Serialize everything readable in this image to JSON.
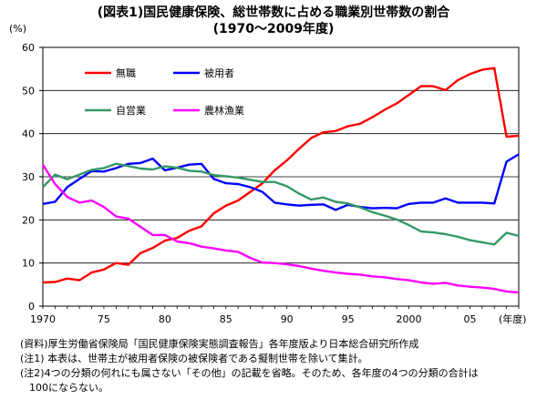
{
  "title_line1": "(図表1)国民健康保険、総世帯数に占める職業別世帯数の割合",
  "title_line2": "(1970〜2009年度)",
  "notes": {
    "source": "(資料)厚生労働省保険局「国民健康保険実態調査報告」各年度版より日本総合研究所作成",
    "note1": "(注1) 本表は、世帯主が被用者保険の被保険者である擬制世帯を除いて集計。",
    "note2": "(注2)4つの分類の何れにも属さない「その他」の記載を省略。そのため、各年度の4つの分類の合計は",
    "note2_cont": "100にならない。"
  },
  "chart_data": {
    "type": "line",
    "ylabel": "(%)",
    "xlabel": "(年度)",
    "ylim": [
      0,
      60
    ],
    "yticks": [
      "0",
      "10",
      "20",
      "30",
      "40",
      "50",
      "60"
    ],
    "xlim": [
      1970,
      2009
    ],
    "xticks": [
      {
        "year": 1970,
        "label": "1970"
      },
      {
        "year": 1975,
        "label": "75"
      },
      {
        "year": 1980,
        "label": "80"
      },
      {
        "year": 1985,
        "label": "85"
      },
      {
        "year": 1990,
        "label": "90"
      },
      {
        "year": 1995,
        "label": "95"
      },
      {
        "year": 2000,
        "label": "2000"
      },
      {
        "year": 2005,
        "label": "05"
      }
    ],
    "grid": true,
    "legend_position": "top",
    "x": [
      1970,
      1971,
      1972,
      1973,
      1974,
      1975,
      1976,
      1977,
      1978,
      1979,
      1980,
      1981,
      1982,
      1983,
      1984,
      1985,
      1986,
      1987,
      1988,
      1989,
      1990,
      1991,
      1992,
      1993,
      1994,
      1995,
      1996,
      1997,
      1998,
      1999,
      2000,
      2001,
      2002,
      2003,
      2004,
      2005,
      2006,
      2007,
      2008,
      2009
    ],
    "series": [
      {
        "name": "無職",
        "color": "#ff0000",
        "values": [
          5.5,
          5.6,
          6.4,
          6.0,
          7.8,
          8.5,
          10.0,
          9.6,
          12.3,
          13.5,
          15.2,
          15.8,
          17.5,
          18.5,
          21.5,
          23.3,
          24.5,
          26.5,
          28.5,
          31.5,
          33.8,
          36.5,
          39.0,
          40.3,
          40.6,
          41.7,
          42.3,
          43.8,
          45.5,
          47.0,
          49.0,
          51.0,
          51.0,
          50.1,
          52.4,
          53.8,
          54.8,
          55.2,
          39.3,
          39.5
        ]
      },
      {
        "name": "被用者",
        "color": "#0000ff",
        "values": [
          23.7,
          24.2,
          27.6,
          29.5,
          31.3,
          31.2,
          32.0,
          33.0,
          33.2,
          34.2,
          31.5,
          32.1,
          32.8,
          33.0,
          29.5,
          28.5,
          28.3,
          27.6,
          26.5,
          24.0,
          23.6,
          23.3,
          23.5,
          23.6,
          22.3,
          23.5,
          23.0,
          22.7,
          22.8,
          22.7,
          23.7,
          24.0,
          24.0,
          25.0,
          24.0,
          24.0,
          24.0,
          23.8,
          33.5,
          35.2
        ]
      },
      {
        "name": "自営業",
        "color": "#339966",
        "values": [
          27.6,
          30.5,
          29.4,
          30.5,
          31.6,
          32.0,
          33.0,
          32.5,
          31.9,
          31.7,
          32.4,
          32.1,
          31.4,
          31.2,
          30.4,
          30.1,
          29.8,
          29.3,
          28.8,
          28.8,
          27.8,
          26.1,
          24.7,
          25.2,
          24.2,
          23.8,
          22.9,
          21.8,
          21.0,
          20.1,
          18.8,
          17.3,
          17.1,
          16.7,
          16.1,
          15.3,
          14.8,
          14.3,
          17.0,
          16.3
        ]
      },
      {
        "name": "農林漁業",
        "color": "#ff00ff",
        "values": [
          32.8,
          28.3,
          25.3,
          24.0,
          24.5,
          23.0,
          20.8,
          20.3,
          18.4,
          16.5,
          16.5,
          15.0,
          14.6,
          13.8,
          13.4,
          12.9,
          12.6,
          11.2,
          10.1,
          10.0,
          9.7,
          9.3,
          8.7,
          8.2,
          7.8,
          7.5,
          7.3,
          6.9,
          6.7,
          6.3,
          6.0,
          5.5,
          5.2,
          5.4,
          4.8,
          4.5,
          4.3,
          4.0,
          3.4,
          3.2
        ]
      }
    ]
  }
}
